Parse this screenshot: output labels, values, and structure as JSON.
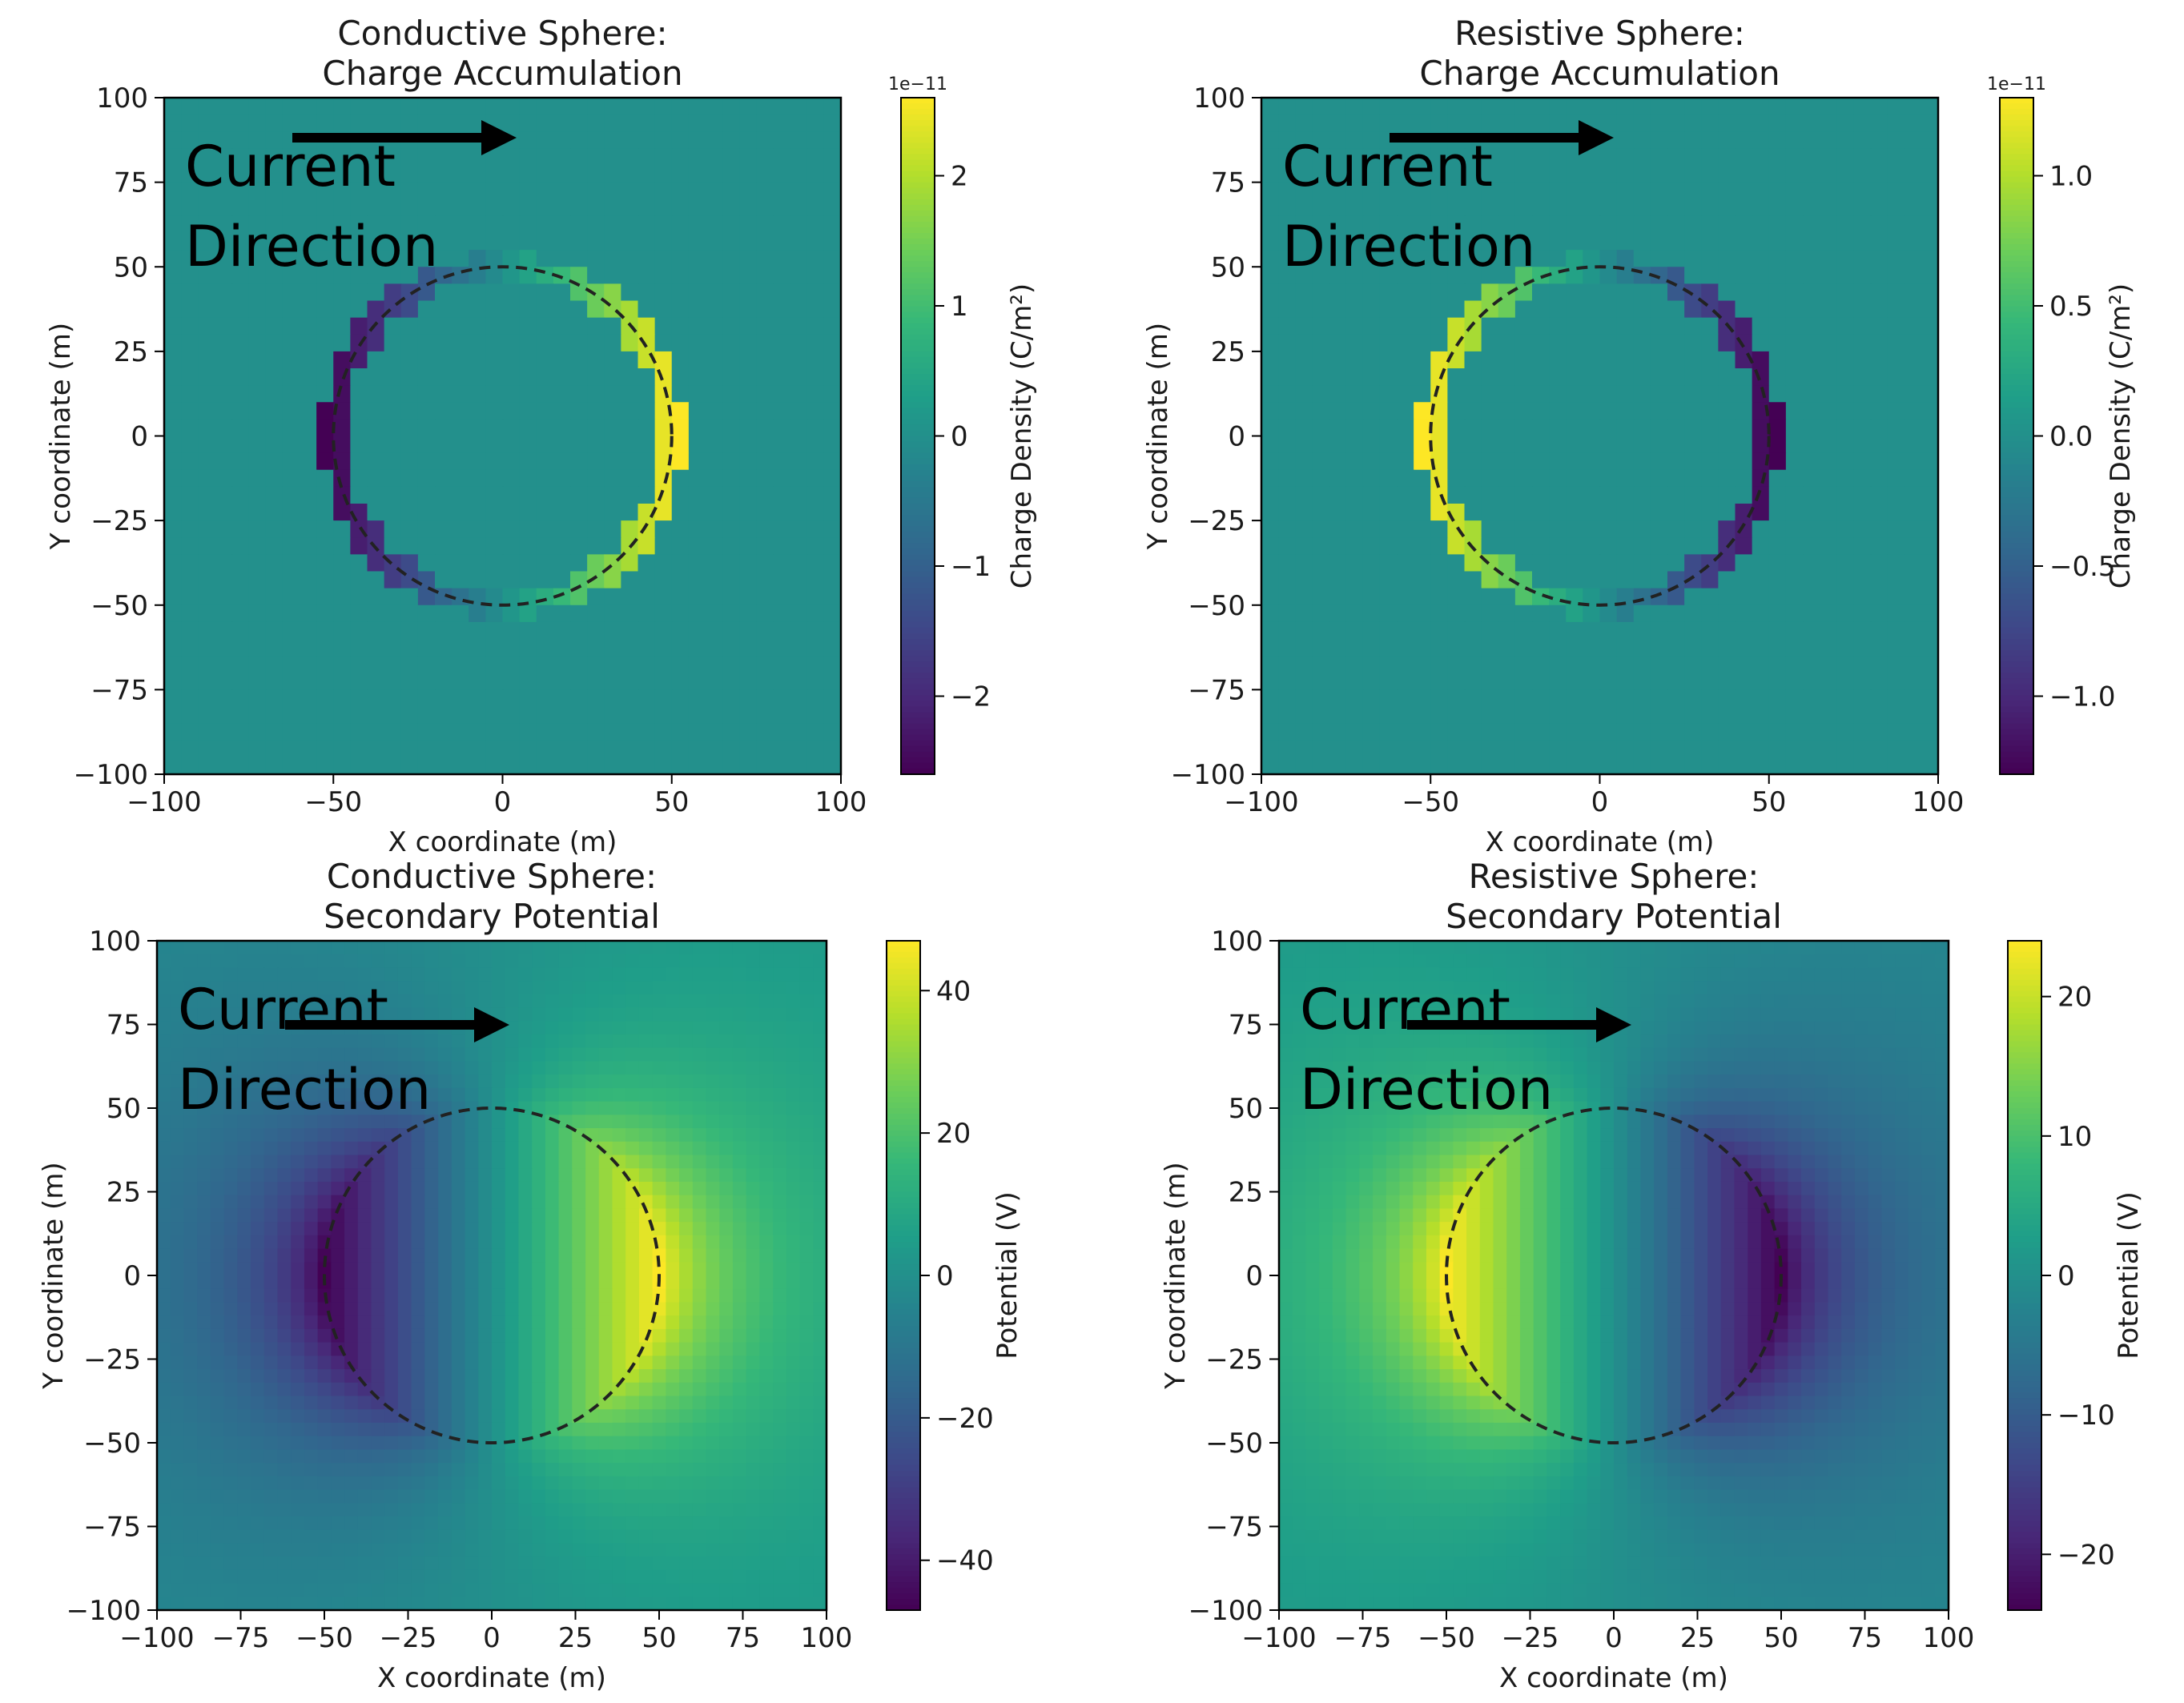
{
  "colors": {
    "colormap": [
      "#440154",
      "#482878",
      "#3e4989",
      "#31688e",
      "#26828e",
      "#1f9e89",
      "#35b779",
      "#6ece58",
      "#b5de2b",
      "#fde725"
    ],
    "circle": "#222222",
    "arrow": "#000000"
  },
  "chart_data": [
    {
      "type": "heatmap",
      "title": [
        "Conductive Sphere:",
        "Charge Accumulation"
      ],
      "field": "charge",
      "sign": 1,
      "xlabel": "X coordinate (m)",
      "ylabel": "Y coordinate (m)",
      "xlim": [
        -100,
        100
      ],
      "ylim": [
        -100,
        100
      ],
      "xticks": [
        -100,
        -50,
        0,
        50,
        100
      ],
      "xtick_labels": [
        "−100",
        "−50",
        "0",
        "50",
        "100"
      ],
      "yticks": [
        100,
        75,
        50,
        25,
        0,
        -25,
        -50,
        -75,
        -100
      ],
      "ytick_labels": [
        "100",
        "75",
        "50",
        "25",
        "0",
        "−25",
        "−50",
        "−75",
        "−100"
      ],
      "sphere": {
        "center": [
          0,
          0
        ],
        "radius": 50
      },
      "colorbar": {
        "label": "Charge Density (C/m²)",
        "multiplier": "1e−11",
        "range": [
          -2.6,
          2.6
        ],
        "ticks": [
          2,
          1,
          0,
          -1,
          -2
        ],
        "tick_labels": [
          "2",
          "1",
          "0",
          "−1",
          "−2"
        ]
      },
      "annotation": {
        "text_line1": "Current",
        "text_line2": "Direction"
      }
    },
    {
      "type": "heatmap",
      "title": [
        "Resistive Sphere:",
        "Charge Accumulation"
      ],
      "field": "charge",
      "sign": -1,
      "xlabel": "X coordinate (m)",
      "ylabel": "Y coordinate (m)",
      "xlim": [
        -100,
        100
      ],
      "ylim": [
        -100,
        100
      ],
      "xticks": [
        -100,
        -50,
        0,
        50,
        100
      ],
      "xtick_labels": [
        "−100",
        "−50",
        "0",
        "50",
        "100"
      ],
      "yticks": [
        100,
        75,
        50,
        25,
        0,
        -25,
        -50,
        -75,
        -100
      ],
      "ytick_labels": [
        "100",
        "75",
        "50",
        "25",
        "0",
        "−25",
        "−50",
        "−75",
        "−100"
      ],
      "sphere": {
        "center": [
          0,
          0
        ],
        "radius": 50
      },
      "colorbar": {
        "label": "Charge Density (C/m²)",
        "multiplier": "1e−11",
        "range": [
          -1.3,
          1.3
        ],
        "ticks": [
          1.0,
          0.5,
          0.0,
          -0.5,
          -1.0
        ],
        "tick_labels": [
          "1.0",
          "0.5",
          "0.0",
          "−0.5",
          "−1.0"
        ]
      },
      "annotation": {
        "text_line1": "Current",
        "text_line2": "Direction"
      }
    },
    {
      "type": "heatmap",
      "title": [
        "Conductive Sphere:",
        "Secondary Potential"
      ],
      "field": "potential",
      "sign": 1,
      "xlabel": "X coordinate (m)",
      "ylabel": "Y coordinate (m)",
      "xlim": [
        -100,
        100
      ],
      "ylim": [
        -100,
        100
      ],
      "xticks": [
        -100,
        -75,
        -50,
        -25,
        0,
        25,
        50,
        75,
        100
      ],
      "xtick_labels": [
        "−100",
        "−75",
        "−50",
        "−25",
        "0",
        "25",
        "50",
        "75",
        "100"
      ],
      "yticks": [
        100,
        75,
        50,
        25,
        0,
        -25,
        -50,
        -75,
        -100
      ],
      "ytick_labels": [
        "100",
        "75",
        "50",
        "25",
        "0",
        "−25",
        "−50",
        "−75",
        "−100"
      ],
      "sphere": {
        "center": [
          0,
          0
        ],
        "radius": 50
      },
      "colorbar": {
        "label": "Potential (V)",
        "multiplier": "",
        "range": [
          -47,
          47
        ],
        "ticks": [
          40,
          20,
          0,
          -20,
          -40
        ],
        "tick_labels": [
          "40",
          "20",
          "0",
          "−20",
          "−40"
        ]
      },
      "annotation": {
        "text_line1": "Current",
        "text_line2": "Direction"
      }
    },
    {
      "type": "heatmap",
      "title": [
        "Resistive Sphere:",
        "Secondary Potential"
      ],
      "field": "potential",
      "sign": -1,
      "xlabel": "X coordinate (m)",
      "ylabel": "Y coordinate (m)",
      "xlim": [
        -100,
        100
      ],
      "ylim": [
        -100,
        100
      ],
      "xticks": [
        -100,
        -75,
        -50,
        -25,
        0,
        25,
        50,
        75,
        100
      ],
      "xtick_labels": [
        "−100",
        "−75",
        "−50",
        "−25",
        "0",
        "25",
        "50",
        "75",
        "100"
      ],
      "yticks": [
        100,
        75,
        50,
        25,
        0,
        -25,
        -50,
        -75,
        -100
      ],
      "ytick_labels": [
        "100",
        "75",
        "50",
        "25",
        "0",
        "−25",
        "−50",
        "−75",
        "−100"
      ],
      "sphere": {
        "center": [
          0,
          0
        ],
        "radius": 50
      },
      "colorbar": {
        "label": "Potential (V)",
        "multiplier": "",
        "range": [
          -24,
          24
        ],
        "ticks": [
          20,
          10,
          0,
          -10,
          -20
        ],
        "tick_labels": [
          "20",
          "10",
          "0",
          "−10",
          "−20"
        ]
      },
      "annotation": {
        "text_line1": "Current",
        "text_line2": "Direction"
      }
    }
  ]
}
